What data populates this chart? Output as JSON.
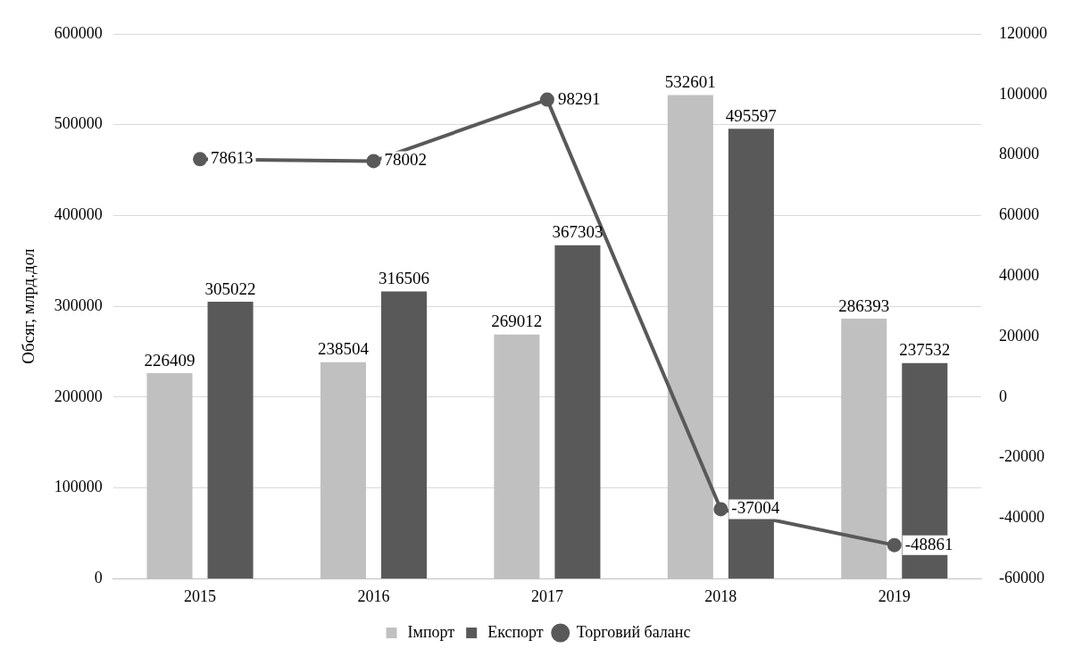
{
  "chart_data": {
    "type": "bar",
    "ylabel": "Обсяг, млрд.дол",
    "categories": [
      "2015",
      "2016",
      "2017",
      "2018",
      "2019"
    ],
    "series": [
      {
        "name": "Імпорт",
        "color": "#c0c0c0",
        "values": [
          226409,
          238504,
          269012,
          532601,
          286393
        ]
      },
      {
        "name": "Експорт",
        "color": "#595959",
        "values": [
          305022,
          316506,
          367303,
          495597,
          237532
        ]
      },
      {
        "name": "Торговий баланс",
        "type": "line",
        "axis": "y2",
        "color": "#595959",
        "values": [
          78613,
          78002,
          98291,
          -37004,
          -48861
        ]
      }
    ],
    "ylim": [
      0,
      600000
    ],
    "yticks": [
      0,
      100000,
      200000,
      300000,
      400000,
      500000,
      600000
    ],
    "y2lim": [
      -60000,
      120000
    ],
    "y2ticks": [
      -60000,
      -40000,
      -20000,
      0,
      20000,
      40000,
      60000,
      80000,
      100000,
      120000
    ],
    "grid": "y",
    "legend": "bottom",
    "marker": "circle",
    "data_labels": true
  }
}
